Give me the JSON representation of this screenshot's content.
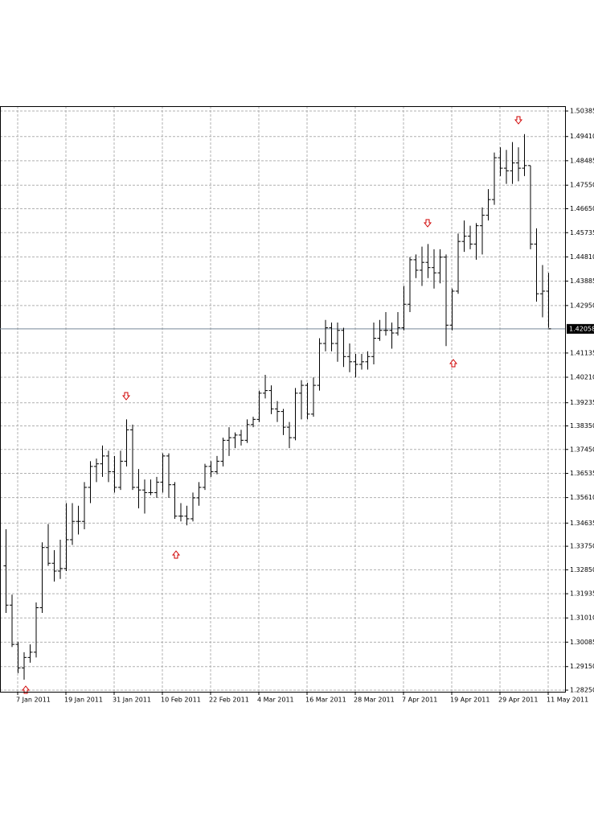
{
  "chart_data": {
    "type": "ohlc",
    "color": "#000000",
    "grid": true,
    "current_price": 1.42058,
    "ylim": [
      1.28189,
      1.5057
    ],
    "yticks": [
      1.50385,
      {
        "value": 1.4941,
        "label": "1.49410"
      },
      1.48485,
      {
        "value": 1.4755,
        "label": "1.47550"
      },
      {
        "value": 1.4665,
        "label": "1.46650"
      },
      1.45735,
      {
        "value": 1.4481,
        "label": "1.44810"
      },
      1.43885,
      {
        "value": 1.4295,
        "label": "1.42950"
      },
      1.41135,
      {
        "value": 1.4021,
        "label": "1.40210"
      },
      1.39235,
      {
        "value": 1.3835,
        "label": "1.38350"
      },
      {
        "value": 1.3745,
        "label": "1.37450"
      },
      1.36535,
      {
        "value": 1.3561,
        "label": "1.35610"
      },
      1.34635,
      {
        "value": 1.3375,
        "label": "1.33750"
      },
      {
        "value": 1.3285,
        "label": "1.32850"
      },
      1.31935,
      {
        "value": 1.3101,
        "label": "1.31010"
      },
      1.30085,
      {
        "value": 1.2915,
        "label": "1.29150"
      },
      {
        "value": 1.2825,
        "label": "1.28250"
      }
    ],
    "categories": [
      null,
      null,
      "7 Jan 2011",
      null,
      null,
      null,
      null,
      null,
      null,
      null,
      "19 Jan 2011",
      null,
      null,
      null,
      null,
      null,
      null,
      null,
      "31 Jan 2011",
      null,
      null,
      null,
      null,
      null,
      null,
      null,
      "10 Feb 2011",
      null,
      null,
      null,
      null,
      null,
      null,
      null,
      "22 Feb 2011",
      null,
      null,
      null,
      null,
      null,
      null,
      null,
      "4 Mar 2011",
      null,
      null,
      null,
      null,
      null,
      null,
      null,
      "16 Mar 2011",
      null,
      null,
      null,
      null,
      null,
      null,
      null,
      "28 Mar 2011",
      null,
      null,
      null,
      null,
      null,
      null,
      null,
      "7 Apr 2011",
      null,
      null,
      null,
      null,
      null,
      null,
      null,
      "19 Apr 2011",
      null,
      null,
      null,
      null,
      null,
      null,
      null,
      "29 Apr 2011",
      null,
      null,
      null,
      null,
      null,
      null,
      null,
      "11 May 2011"
    ],
    "ohlc": [
      [
        1.33,
        1.344,
        1.312,
        1.315
      ],
      [
        1.315,
        1.319,
        1.299,
        1.3
      ],
      [
        1.3,
        1.301,
        1.289,
        1.291
      ],
      [
        1.291,
        1.297,
        1.2865,
        1.295
      ],
      [
        1.295,
        1.3,
        1.293,
        1.297
      ],
      [
        1.297,
        1.316,
        1.295,
        1.314
      ],
      [
        1.314,
        1.339,
        1.312,
        1.337
      ],
      [
        1.337,
        1.346,
        1.33,
        1.331
      ],
      [
        1.331,
        1.336,
        1.324,
        1.328
      ],
      [
        1.328,
        1.34,
        1.325,
        1.329
      ],
      [
        1.329,
        1.354,
        1.328,
        1.34
      ],
      [
        1.34,
        1.354,
        1.338,
        1.347
      ],
      [
        1.347,
        1.353,
        1.342,
        1.347
      ],
      [
        1.347,
        1.362,
        1.344,
        1.36
      ],
      [
        1.36,
        1.37,
        1.354,
        1.368
      ],
      [
        1.368,
        1.371,
        1.362,
        1.369
      ],
      [
        1.369,
        1.376,
        1.364,
        1.372
      ],
      [
        1.372,
        1.374,
        1.362,
        1.366
      ],
      [
        1.366,
        1.372,
        1.358,
        1.36
      ],
      [
        1.36,
        1.374,
        1.359,
        1.37
      ],
      [
        1.37,
        1.386,
        1.368,
        1.382
      ],
      [
        1.382,
        1.384,
        1.359,
        1.36
      ],
      [
        1.36,
        1.367,
        1.352,
        1.359
      ],
      [
        1.359,
        1.363,
        1.35,
        1.358
      ],
      [
        1.358,
        1.363,
        1.357,
        1.358
      ],
      [
        1.358,
        1.364,
        1.356,
        1.362
      ],
      [
        1.362,
        1.373,
        1.358,
        1.372
      ],
      [
        1.372,
        1.373,
        1.356,
        1.361
      ],
      [
        1.361,
        1.362,
        1.348,
        1.349
      ],
      [
        1.349,
        1.354,
        1.347,
        1.349
      ],
      [
        1.349,
        1.353,
        1.3455,
        1.348
      ],
      [
        1.348,
        1.358,
        1.347,
        1.356
      ],
      [
        1.356,
        1.362,
        1.353,
        1.36
      ],
      [
        1.36,
        1.369,
        1.359,
        1.368
      ],
      [
        1.368,
        1.37,
        1.364,
        1.366
      ],
      [
        1.366,
        1.372,
        1.365,
        1.37
      ],
      [
        1.37,
        1.379,
        1.368,
        1.378
      ],
      [
        1.378,
        1.383,
        1.372,
        1.379
      ],
      [
        1.379,
        1.381,
        1.375,
        1.38
      ],
      [
        1.38,
        1.382,
        1.376,
        1.378
      ],
      [
        1.378,
        1.386,
        1.377,
        1.384
      ],
      [
        1.384,
        1.387,
        1.383,
        1.386
      ],
      [
        1.386,
        1.397,
        1.385,
        1.396
      ],
      [
        1.396,
        1.403,
        1.394,
        1.397
      ],
      [
        1.397,
        1.399,
        1.388,
        1.39
      ],
      [
        1.39,
        1.393,
        1.385,
        1.389
      ],
      [
        1.389,
        1.39,
        1.38,
        1.383
      ],
      [
        1.383,
        1.385,
        1.375,
        1.379
      ],
      [
        1.379,
        1.398,
        1.378,
        1.396
      ],
      [
        1.396,
        1.401,
        1.386,
        1.399
      ],
      [
        1.399,
        1.4,
        1.386,
        1.388
      ],
      [
        1.388,
        1.402,
        1.387,
        1.399
      ],
      [
        1.399,
        1.417,
        1.397,
        1.415
      ],
      [
        1.415,
        1.424,
        1.412,
        1.421
      ],
      [
        1.421,
        1.423,
        1.412,
        1.415
      ],
      [
        1.415,
        1.423,
        1.408,
        1.42
      ],
      [
        1.42,
        1.421,
        1.406,
        1.41
      ],
      [
        1.41,
        1.415,
        1.404,
        1.408
      ],
      [
        1.408,
        1.411,
        1.402,
        1.407
      ],
      [
        1.407,
        1.411,
        1.405,
        1.408
      ],
      [
        1.408,
        1.412,
        1.405,
        1.41
      ],
      [
        1.41,
        1.423,
        1.407,
        1.417
      ],
      [
        1.417,
        1.424,
        1.416,
        1.42
      ],
      [
        1.42,
        1.427,
        1.418,
        1.42
      ],
      [
        1.42,
        1.423,
        1.413,
        1.419
      ],
      [
        1.419,
        1.427,
        1.418,
        1.421
      ],
      [
        1.421,
        1.437,
        1.42,
        1.43
      ],
      [
        1.43,
        1.448,
        1.427,
        1.447
      ],
      [
        1.447,
        1.449,
        1.44,
        1.443
      ],
      [
        1.443,
        1.452,
        1.437,
        1.446
      ],
      [
        1.446,
        1.453,
        1.44,
        1.444
      ],
      [
        1.444,
        1.451,
        1.436,
        1.442
      ],
      [
        1.442,
        1.451,
        1.438,
        1.448
      ],
      [
        1.448,
        1.449,
        1.414,
        1.422
      ],
      [
        1.422,
        1.436,
        1.42,
        1.435
      ],
      [
        1.435,
        1.457,
        1.434,
        1.454
      ],
      [
        1.454,
        1.462,
        1.45,
        1.456
      ],
      [
        1.456,
        1.46,
        1.451,
        1.453
      ],
      [
        1.453,
        1.461,
        1.447,
        1.46
      ],
      [
        1.46,
        1.467,
        1.449,
        1.464
      ],
      [
        1.464,
        1.474,
        1.462,
        1.47
      ],
      [
        1.47,
        1.488,
        1.468,
        1.486
      ],
      [
        1.486,
        1.49,
        1.479,
        1.482
      ],
      [
        1.482,
        1.489,
        1.476,
        1.481
      ],
      [
        1.481,
        1.492,
        1.476,
        1.484
      ],
      [
        1.484,
        1.49,
        1.477,
        1.482
      ],
      [
        1.482,
        1.495,
        1.479,
        1.483
      ],
      [
        1.483,
        1.483,
        1.451,
        1.453
      ],
      [
        1.453,
        1.459,
        1.431,
        1.434
      ],
      [
        1.434,
        1.445,
        1.425,
        1.435
      ],
      [
        1.435,
        1.442,
        1.421,
        1.4206
      ]
    ]
  }
}
